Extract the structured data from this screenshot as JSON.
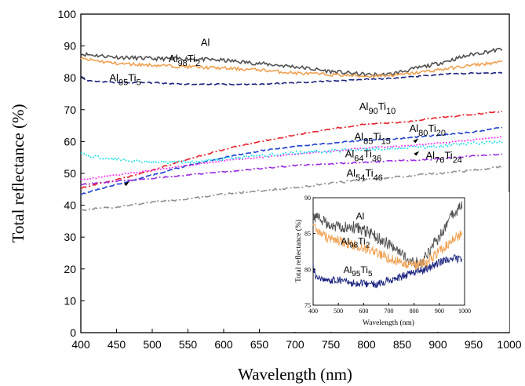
{
  "chart_data": [
    {
      "type": "line",
      "title": "",
      "xlabel": "Wavelength (nm)",
      "ylabel": "Total reflectance (%)",
      "xlim": [
        400,
        1000
      ],
      "ylim": [
        0,
        100
      ],
      "xticks": [
        400,
        450,
        500,
        550,
        600,
        650,
        700,
        750,
        800,
        850,
        900,
        950,
        1000
      ],
      "yticks": [
        0,
        10,
        20,
        30,
        40,
        50,
        60,
        70,
        80,
        90,
        100
      ],
      "grid": false,
      "legend": "inline labels",
      "series": [
        {
          "name": "Al",
          "label_parts": [
            "Al",
            "",
            "",
            ""
          ],
          "color": "#505050",
          "style": "solid",
          "noise": 0.6,
          "x": [
            400,
            450,
            500,
            550,
            600,
            650,
            700,
            750,
            800,
            830,
            850,
            900,
            950,
            990
          ],
          "y": [
            87.5,
            86.5,
            86,
            86,
            85.5,
            84.5,
            83.5,
            82,
            81,
            81,
            82,
            84.5,
            87.5,
            89
          ]
        },
        {
          "name": "Al98Ti2",
          "label_parts": [
            "Al",
            "98",
            "Ti",
            "2"
          ],
          "color": "#f0a050",
          "style": "solid",
          "noise": 0.5,
          "x": [
            400,
            450,
            500,
            550,
            600,
            650,
            700,
            750,
            800,
            850,
            900,
            950,
            990
          ],
          "y": [
            86,
            84.5,
            84,
            83.5,
            83,
            82.5,
            81.5,
            81,
            80.5,
            81,
            82.5,
            84,
            85
          ]
        },
        {
          "name": "Al95Ti5",
          "label_parts": [
            "Al",
            "95",
            "Ti",
            "5"
          ],
          "color": "#1a237e",
          "style": "dashed",
          "noise": 0.2,
          "x": [
            400,
            410,
            450,
            500,
            550,
            600,
            650,
            700,
            750,
            800,
            850,
            900,
            950,
            990
          ],
          "y": [
            80.5,
            79,
            78.5,
            78.5,
            78,
            78,
            78,
            78.5,
            79,
            79.5,
            80,
            81,
            81.5,
            81.5
          ]
        },
        {
          "name": "Al90Ti10",
          "label_parts": [
            "Al",
            "90",
            "Ti",
            "10"
          ],
          "color": "#e8202a",
          "style": "dashdot",
          "noise": 0.2,
          "x": [
            400,
            450,
            500,
            550,
            600,
            650,
            700,
            750,
            800,
            850,
            900,
            950,
            990
          ],
          "y": [
            45.5,
            48,
            51,
            54.5,
            57.5,
            60,
            62,
            64,
            65.5,
            66,
            67.5,
            68.5,
            69.5
          ]
        },
        {
          "name": "Al85Ti15",
          "label_parts": [
            "Al",
            "85",
            "Ti",
            "15"
          ],
          "color": "#2040d0",
          "style": "dashed",
          "noise": 0.2,
          "x": [
            400,
            450,
            500,
            550,
            600,
            650,
            700,
            750,
            800,
            850,
            900,
            950,
            990
          ],
          "y": [
            43.5,
            46.5,
            49.5,
            52.5,
            55,
            57,
            58.5,
            59.5,
            60.5,
            61,
            62,
            63,
            64.5
          ]
        },
        {
          "name": "Al80Ti20",
          "label_parts": [
            "Al",
            "80",
            "Ti",
            "20"
          ],
          "color": "#ff30ff",
          "style": "dotted",
          "noise": 0.2,
          "x": [
            400,
            450,
            500,
            550,
            600,
            650,
            700,
            750,
            800,
            850,
            900,
            950,
            990
          ],
          "y": [
            48,
            49.5,
            51,
            52.5,
            54,
            55,
            56,
            57,
            58,
            58.5,
            59.5,
            60.5,
            61.5
          ]
        },
        {
          "name": "Al76Ti24",
          "label_parts": [
            "Al",
            "76",
            "Ti",
            "24"
          ],
          "color": "#20e0e8",
          "style": "dotted",
          "noise": 0.5,
          "x": [
            400,
            410,
            450,
            500,
            550,
            600,
            650,
            700,
            750,
            800,
            850,
            900,
            950,
            990
          ],
          "y": [
            56.5,
            55.5,
            54.5,
            53.5,
            53.5,
            54.5,
            55.5,
            56.5,
            57,
            57.5,
            58,
            58.5,
            59.5,
            60
          ]
        },
        {
          "name": "Al64Ti36",
          "label_parts": [
            "Al",
            "64",
            "Ti",
            "36"
          ],
          "color": "#9a2be2",
          "style": "dashdot",
          "noise": 0.2,
          "x": [
            400,
            450,
            500,
            550,
            600,
            650,
            700,
            750,
            800,
            850,
            900,
            950,
            990
          ],
          "y": [
            46.5,
            47.5,
            48.5,
            49.5,
            50.5,
            51.5,
            52.5,
            53,
            53.5,
            54,
            54.5,
            55.5,
            56
          ]
        },
        {
          "name": "Al54Ti46",
          "label_parts": [
            "Al",
            "54",
            "Ti",
            "46"
          ],
          "color": "#909090",
          "style": "dashdot",
          "noise": 0.3,
          "x": [
            400,
            450,
            500,
            550,
            600,
            650,
            700,
            750,
            800,
            850,
            900,
            950,
            990
          ],
          "y": [
            38.5,
            39.5,
            41,
            42,
            43.5,
            44.5,
            45.5,
            47,
            48,
            49,
            50,
            51,
            52
          ]
        }
      ],
      "annotations": [
        {
          "text_parts": [
            "Al",
            "",
            "",
            ""
          ],
          "x": 568,
          "y": 90
        },
        {
          "text_parts": [
            "Al",
            "98",
            "Ti",
            "2"
          ],
          "x": 523,
          "y": 85
        },
        {
          "text_parts": [
            "Al",
            "95",
            "Ti",
            "5"
          ],
          "x": 440,
          "y": 79
        },
        {
          "text_parts": [
            "Al",
            "90",
            "Ti",
            "10"
          ],
          "x": 790,
          "y": 70
        },
        {
          "text_parts": [
            "Al",
            "85",
            "Ti",
            "15"
          ],
          "x": 783,
          "y": 60.5
        },
        {
          "text_parts": [
            "Al",
            "80",
            "Ti",
            "20"
          ],
          "x": 860,
          "y": 63
        },
        {
          "text_parts": [
            "Al",
            "76",
            "Ti",
            "24"
          ],
          "x": 883,
          "y": 54.5
        },
        {
          "text_parts": [
            "Al",
            "64",
            "Ti",
            "36"
          ],
          "x": 770,
          "y": 55
        },
        {
          "text_parts": [
            "Al",
            "54",
            "Ti",
            "46"
          ],
          "x": 772,
          "y": 49
        }
      ]
    },
    {
      "type": "line",
      "title": "",
      "xlabel": "Wavelength (nm)",
      "ylabel": "Total reflectance (%)",
      "xlim": [
        400,
        1000
      ],
      "ylim": [
        75,
        90
      ],
      "xticks": [
        400,
        500,
        600,
        700,
        800,
        900,
        1000
      ],
      "yticks": [
        75,
        80,
        85,
        90
      ],
      "grid": false,
      "series": [
        {
          "name": "Al",
          "color": "#505050",
          "noise": 0.6,
          "x": [
            400,
            450,
            500,
            550,
            600,
            650,
            700,
            750,
            800,
            830,
            850,
            900,
            950,
            990
          ],
          "y": [
            87.5,
            86.5,
            86,
            86,
            85.5,
            84.5,
            83.5,
            82,
            81,
            81,
            82,
            84.5,
            87.5,
            89
          ]
        },
        {
          "name": "Al98Ti2",
          "color": "#f0a050",
          "noise": 0.5,
          "x": [
            400,
            450,
            500,
            550,
            600,
            650,
            700,
            750,
            800,
            850,
            900,
            950,
            990
          ],
          "y": [
            86,
            84.5,
            84,
            83.5,
            83,
            82.5,
            81.5,
            81,
            80.5,
            81,
            82.5,
            84,
            85
          ]
        },
        {
          "name": "Al95Ti5",
          "color": "#1a237e",
          "noise": 0.4,
          "x": [
            400,
            410,
            450,
            500,
            550,
            600,
            650,
            700,
            750,
            800,
            850,
            900,
            950,
            990
          ],
          "y": [
            80.5,
            79,
            78.5,
            78.5,
            78,
            78,
            78,
            78.5,
            79,
            79.5,
            80,
            81,
            81.5,
            81.5
          ]
        }
      ],
      "annotations": [
        {
          "text_parts": [
            "Al",
            "",
            "",
            ""
          ],
          "x": 570,
          "y": 87
        },
        {
          "text_parts": [
            "Al",
            "98",
            "Ti",
            "2"
          ],
          "x": 510,
          "y": 83.5
        },
        {
          "text_parts": [
            "Al",
            "95",
            "Ti",
            "5"
          ],
          "x": 520,
          "y": 79.5
        }
      ]
    }
  ]
}
